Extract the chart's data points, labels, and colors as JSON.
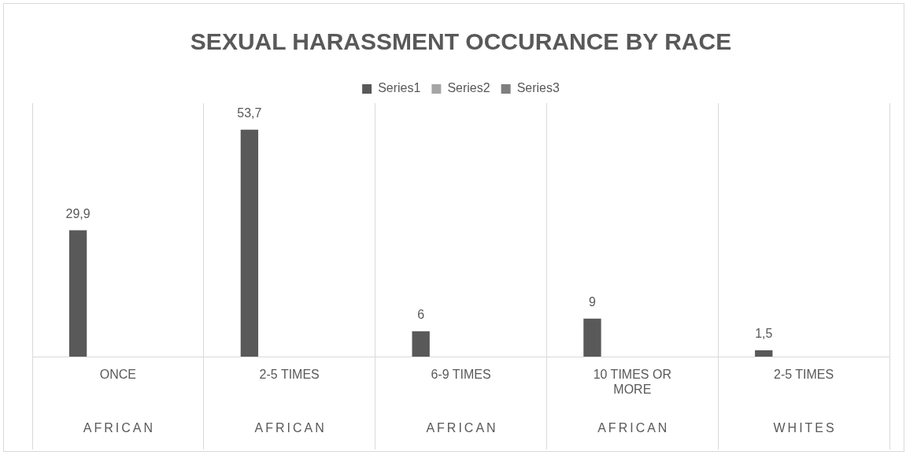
{
  "chart_data": {
    "type": "bar",
    "title": "SEXUAL HARASSMENT OCCURANCE BY RACE",
    "categories": [
      "ONCE",
      "2-5 TIMES",
      "6-9 TIMES",
      "10 TIMES OR MORE",
      "2-5 TIMES"
    ],
    "series": [
      {
        "name": "Series1",
        "color": "#595959",
        "values": [
          29.9,
          53.7,
          6,
          9,
          1.5
        ],
        "value_labels": [
          "29,9",
          "53,7",
          "6",
          "9",
          "1,5"
        ]
      },
      {
        "name": "Series2",
        "color": "#a5a5a5",
        "values": [
          null,
          null,
          null,
          null,
          null
        ]
      },
      {
        "name": "Series3",
        "color": "#7f7f7f",
        "values": [
          null,
          null,
          null,
          null,
          null
        ]
      }
    ],
    "annotations": [
      "AFRICAN",
      "AFRICAN",
      "AFRICAN",
      "AFRICAN",
      "WHITES"
    ],
    "legend": "top",
    "grid": "x"
  }
}
